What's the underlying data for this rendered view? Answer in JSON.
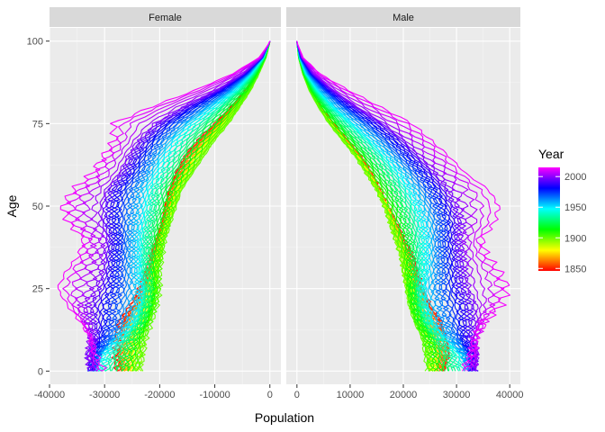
{
  "chart_data": {
    "type": "line",
    "xlabel": "Population",
    "ylabel": "Age",
    "facets": [
      {
        "name": "Female",
        "xlim": [
          -40000,
          2000
        ],
        "xticks": [
          -40000,
          -30000,
          -20000,
          -10000,
          0
        ],
        "xtick_labels": [
          "-40000",
          "-30000",
          "-20000",
          "-10000",
          "0"
        ]
      },
      {
        "name": "Male",
        "xlim": [
          -2000,
          42000
        ],
        "xticks": [
          0,
          10000,
          20000,
          30000,
          40000
        ],
        "xtick_labels": [
          "0",
          "10000",
          "20000",
          "30000",
          "40000"
        ]
      }
    ],
    "ylim": [
      -4,
      104
    ],
    "yticks": [
      0,
      25,
      50,
      75,
      100
    ],
    "ytick_labels": [
      "0",
      "25",
      "50",
      "75",
      "100"
    ],
    "year_range": [
      1846,
      2015
    ],
    "year_step": 3,
    "legend": {
      "title": "Year",
      "ticks": [
        1850,
        1900,
        1950,
        2000
      ],
      "tick_labels": [
        "1850",
        "1900",
        "1950",
        "2000"
      ],
      "colors": [
        "#ff0000",
        "#ffff00",
        "#00ff00",
        "#00ffff",
        "#0000ff",
        "#ff00ff"
      ]
    },
    "profile_ages": [
      0,
      5,
      10,
      15,
      20,
      25,
      30,
      35,
      40,
      45,
      50,
      55,
      60,
      65,
      70,
      75,
      80,
      85,
      90,
      95,
      99
    ],
    "female_profiles": {
      "1850": [
        -27500,
        -28000,
        -27600,
        -27000,
        -25000,
        -23500,
        -22500,
        -21500,
        -20500,
        -19500,
        -19000,
        -18200,
        -17000,
        -15500,
        -13000,
        -10000,
        -7000,
        -4500,
        -2500,
        -800,
        -100
      ],
      "1900": [
        -23500,
        -23000,
        -22500,
        -21500,
        -20500,
        -20000,
        -20000,
        -19500,
        -19000,
        -18000,
        -17000,
        -16000,
        -14000,
        -12000,
        -10000,
        -7500,
        -5500,
        -3500,
        -2000,
        -700,
        -100
      ],
      "1950": [
        -32000,
        -30500,
        -27500,
        -25000,
        -24000,
        -23500,
        -24000,
        -24000,
        -24000,
        -23500,
        -23000,
        -22500,
        -21000,
        -19500,
        -17500,
        -14500,
        -10500,
        -6500,
        -3500,
        -1200,
        -200
      ],
      "2000": [
        -32500,
        -33000,
        -32500,
        -33000,
        -33500,
        -32000,
        -31000,
        -30500,
        -30000,
        -31000,
        -31000,
        -30000,
        -27500,
        -26000,
        -24000,
        -21000,
        -16000,
        -10000,
        -5000,
        -1500,
        -200
      ],
      "2015": [
        -30000,
        -31500,
        -32500,
        -34500,
        -37000,
        -39000,
        -37500,
        -35000,
        -34000,
        -37000,
        -38000,
        -36000,
        -32500,
        -30500,
        -28500,
        -29000,
        -22000,
        -14000,
        -7000,
        -2000,
        -300
      ]
    },
    "male_profiles": {
      "1850": [
        27500,
        28500,
        28000,
        27000,
        25000,
        23500,
        22500,
        21500,
        20000,
        18500,
        17000,
        15500,
        14000,
        12000,
        9500,
        7000,
        4500,
        2800,
        1300,
        400,
        50
      ],
      "1900": [
        24500,
        24000,
        23500,
        22000,
        21000,
        20500,
        20000,
        19500,
        18500,
        17500,
        16500,
        15000,
        13000,
        11000,
        8500,
        6000,
        4000,
        2300,
        1100,
        300,
        50
      ],
      "1950": [
        32500,
        31000,
        28000,
        25500,
        24500,
        24000,
        24500,
        24500,
        24500,
        24000,
        23000,
        21500,
        19500,
        17000,
        14000,
        10500,
        7000,
        4000,
        1800,
        500,
        50
      ],
      "2000": [
        33500,
        34000,
        33500,
        34000,
        34000,
        32500,
        32000,
        31500,
        31000,
        31500,
        30500,
        29000,
        26500,
        23500,
        20500,
        16500,
        11500,
        7000,
        3200,
        900,
        100
      ],
      "2015": [
        31000,
        32500,
        33500,
        35500,
        38500,
        40000,
        38500,
        36000,
        35000,
        37500,
        38500,
        36500,
        32000,
        29000,
        25500,
        22000,
        16000,
        10000,
        4500,
        1200,
        150
      ]
    }
  }
}
